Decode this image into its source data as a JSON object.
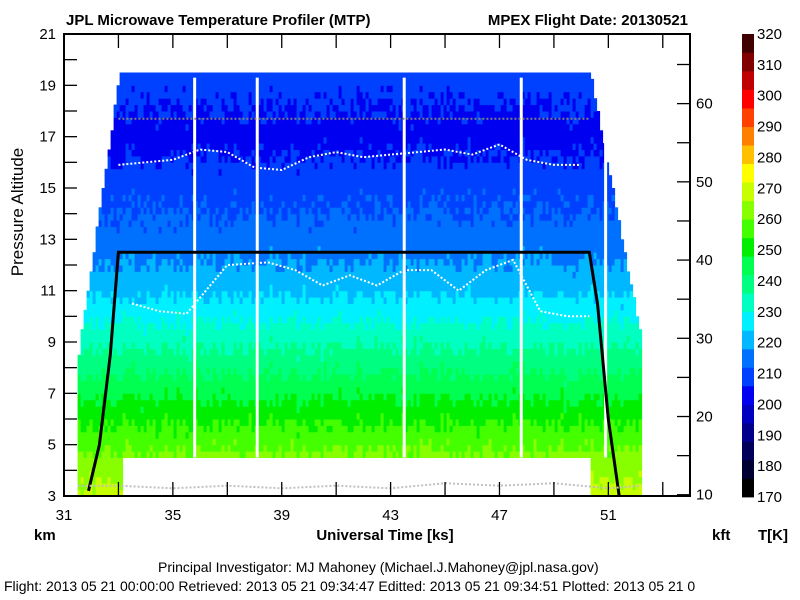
{
  "header": {
    "title_left": "JPL Microwave Temperature Profiler (MTP)",
    "title_right": "MPEX  Flight Date: 20130521"
  },
  "footer": {
    "pi_line": "Principal Investigator: MJ Mahoney (Michael.J.Mahoney@jpl.nasa.gov)",
    "dates_line": "Flight: 2013 05 21 00:00:00   Retrieved: 2013 05 21 09:34:47   Editted: 2013 05 21 09:34:51  Plotted: 2013 05 21 0"
  },
  "chart_data": {
    "type": "heatmap",
    "title": "JPL Microwave Temperature Profiler (MTP)",
    "subtitle": "MPEX  Flight Date: 20130521",
    "xlabel": "Universal Time [ks]",
    "ylabel": "Pressure Altitude",
    "ylabel_left_unit": "km",
    "ylabel_right_unit": "kft",
    "colorbar_label": "T[K]",
    "xlim": [
      31,
      54
    ],
    "ylim_km": [
      3,
      21
    ],
    "ylim_kft": [
      9.84,
      68.9
    ],
    "x_ticks": [
      31,
      33,
      35,
      37,
      39,
      41,
      43,
      45,
      47,
      49,
      51,
      53
    ],
    "x_tick_labels": [
      "31",
      "35",
      "39",
      "43",
      "47",
      "51"
    ],
    "x_tick_label_values": [
      31,
      35,
      39,
      43,
      47,
      51
    ],
    "y_ticks_km": [
      3,
      4,
      5,
      6,
      7,
      8,
      9,
      10,
      11,
      12,
      13,
      14,
      15,
      16,
      17,
      18,
      19,
      20,
      21
    ],
    "y_tick_labels_km": [
      "3",
      "5",
      "7",
      "9",
      "11",
      "13",
      "15",
      "17",
      "19",
      "21"
    ],
    "y_tick_label_values_km": [
      3,
      5,
      7,
      9,
      11,
      13,
      15,
      17,
      19,
      21
    ],
    "y_ticks_kft": [
      10,
      15,
      20,
      25,
      30,
      35,
      40,
      45,
      50,
      55,
      60,
      65
    ],
    "y_tick_labels_kft": [
      "10",
      "20",
      "30",
      "40",
      "50",
      "60"
    ],
    "y_tick_label_values_kft": [
      10,
      20,
      30,
      40,
      50,
      60
    ],
    "colorbar": {
      "levels": [
        170,
        180,
        190,
        200,
        210,
        220,
        230,
        240,
        250,
        260,
        270,
        280,
        290,
        300,
        310,
        320
      ],
      "labels": [
        "320",
        "310",
        "300",
        "290",
        "280",
        "270",
        "260",
        "250",
        "240",
        "230",
        "220",
        "210",
        "200",
        "190",
        "180",
        "170"
      ],
      "colors": [
        "#000000",
        "#000033",
        "#00005a",
        "#00008c",
        "#0000c0",
        "#0000f0",
        "#0040ff",
        "#0070ff",
        "#00b8ff",
        "#00f0ff",
        "#00ffc0",
        "#00ff80",
        "#00ff50",
        "#00ef00",
        "#44ff00",
        "#88ff00",
        "#c8ff00",
        "#ffff00",
        "#ffc000",
        "#ff8000",
        "#ff4000",
        "#ff0000",
        "#c00000",
        "#800000",
        "#400000"
      ]
    },
    "temperature_profile_K": {
      "altitude_km": [
        3,
        4,
        5,
        6,
        7,
        8,
        9,
        10,
        11,
        12,
        13,
        14,
        15,
        16,
        17,
        18,
        19
      ],
      "temperature": [
        268,
        264,
        258,
        252,
        246,
        240,
        234,
        228,
        222,
        218,
        214,
        212,
        210,
        206,
        204,
        206,
        208
      ]
    },
    "flight_segments": {
      "data_start_ks": 32.0,
      "ascent_end_ks": 33.0,
      "cruise_start_ks": 33.0,
      "cruise_end_ks": 50.3,
      "data_end_ks": 52.2,
      "cruise_altitude_km": 12.5,
      "data_gaps_ks": [
        35.8,
        38.1,
        43.5,
        47.8,
        50.9
      ]
    },
    "series": [
      {
        "name": "aircraft altitude",
        "color": "#000000",
        "x": [
          31.9,
          32.3,
          32.7,
          33.0,
          50.3,
          50.6,
          51.0,
          51.4
        ],
        "y": [
          3.2,
          5.0,
          8.5,
          12.5,
          12.5,
          10.5,
          6.0,
          3.0
        ]
      },
      {
        "name": "upper tropopause",
        "color": "#ffffff",
        "x": [
          33.0,
          34.0,
          35.0,
          36.0,
          37.0,
          38.0,
          39.0,
          40.0,
          41.0,
          42.0,
          43.0,
          44.0,
          45.0,
          46.0,
          47.0,
          48.0,
          49.0,
          50.0
        ],
        "y": [
          15.9,
          16.0,
          16.1,
          16.5,
          16.4,
          15.8,
          15.7,
          16.2,
          16.4,
          16.2,
          16.3,
          16.4,
          16.5,
          16.3,
          16.7,
          16.1,
          15.9,
          15.9
        ]
      },
      {
        "name": "lower tropopause",
        "color": "#ffffff",
        "x": [
          33.5,
          34.5,
          35.5,
          37.0,
          38.5,
          39.5,
          40.5,
          41.5,
          42.5,
          43.5,
          44.5,
          45.5,
          46.5,
          47.5,
          48.5,
          49.5,
          50.3
        ],
        "y": [
          10.5,
          10.2,
          10.1,
          12.0,
          12.1,
          11.8,
          11.2,
          11.6,
          11.2,
          11.8,
          11.8,
          11.0,
          11.8,
          12.2,
          10.2,
          10.0,
          10.0
        ]
      },
      {
        "name": "upper trop gray",
        "color": "#808080",
        "x": [
          33.0,
          50.3
        ],
        "y": [
          17.7,
          17.7
        ]
      },
      {
        "name": "surface",
        "color": "#c0c0c0",
        "x": [
          31.5,
          33,
          35,
          37,
          39,
          41,
          43,
          45,
          47,
          49,
          51,
          52.2
        ],
        "y": [
          3.4,
          3.4,
          3.3,
          3.4,
          3.3,
          3.4,
          3.3,
          3.5,
          3.4,
          3.5,
          3.3,
          3.4
        ]
      }
    ],
    "grid": false,
    "legend_placement": "right colorbar"
  }
}
